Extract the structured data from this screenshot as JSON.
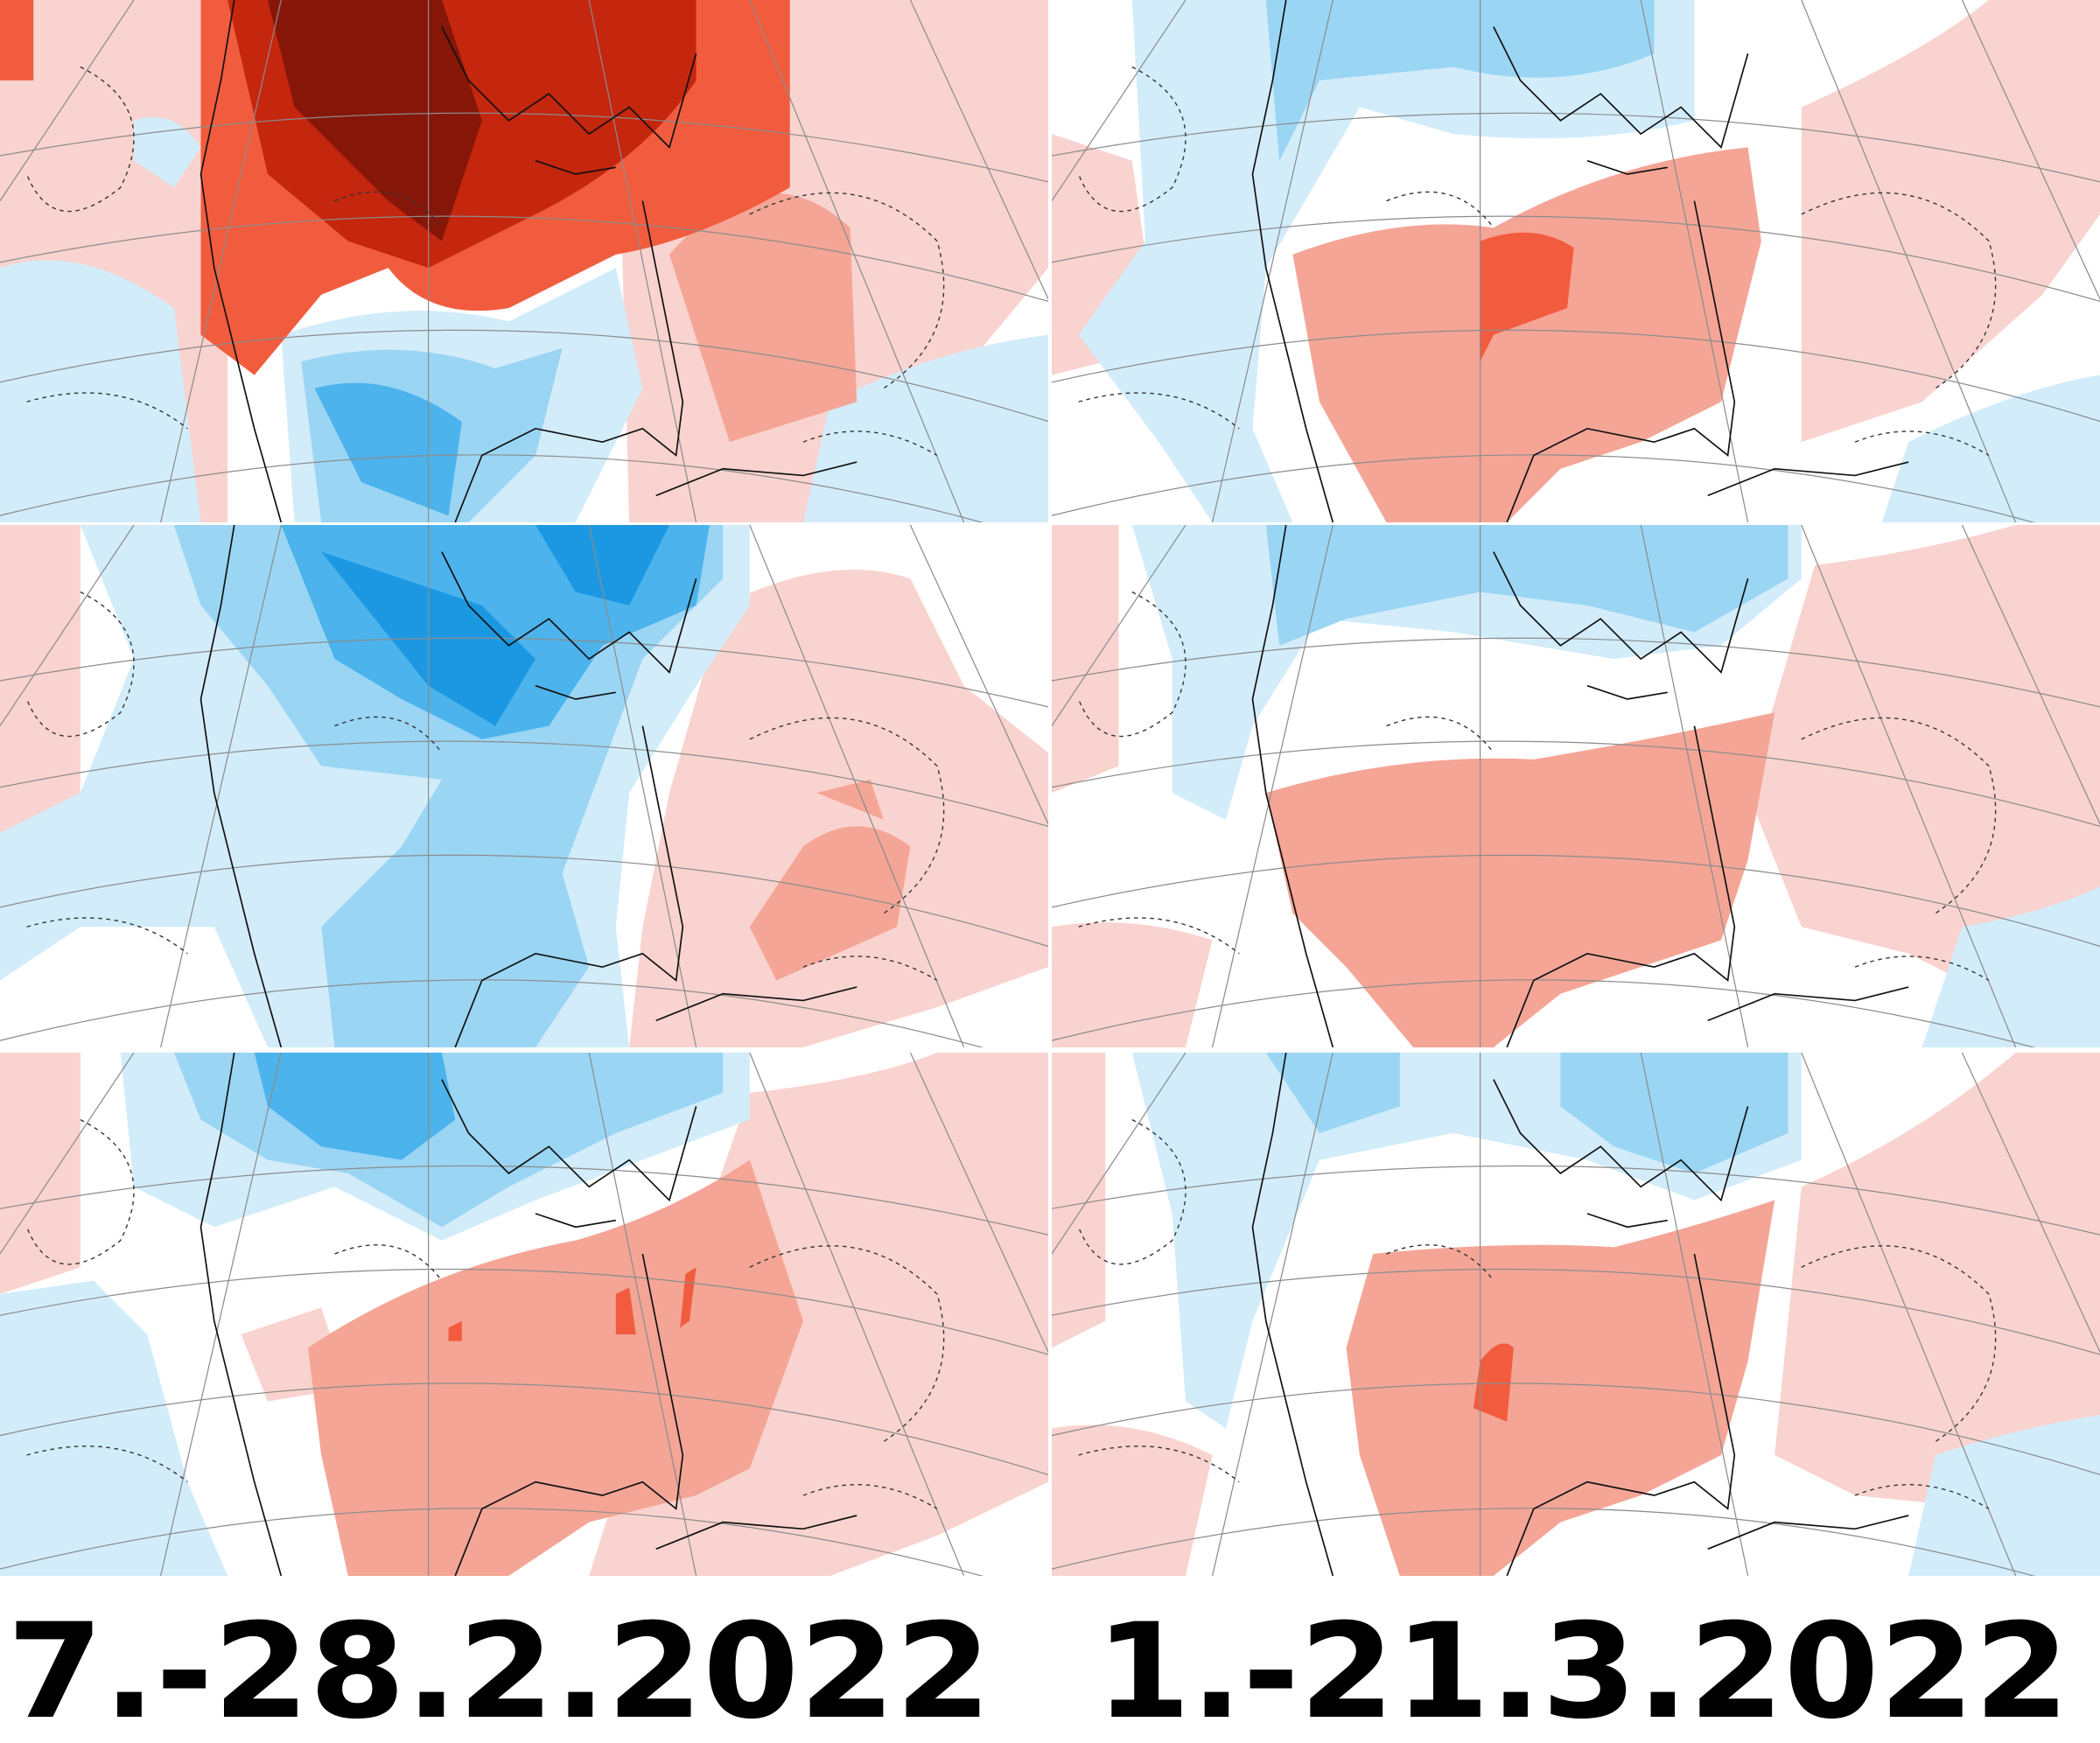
{
  "captions": [
    "7.-28.2.2022",
    "1.-21.3.2022"
  ]
}
